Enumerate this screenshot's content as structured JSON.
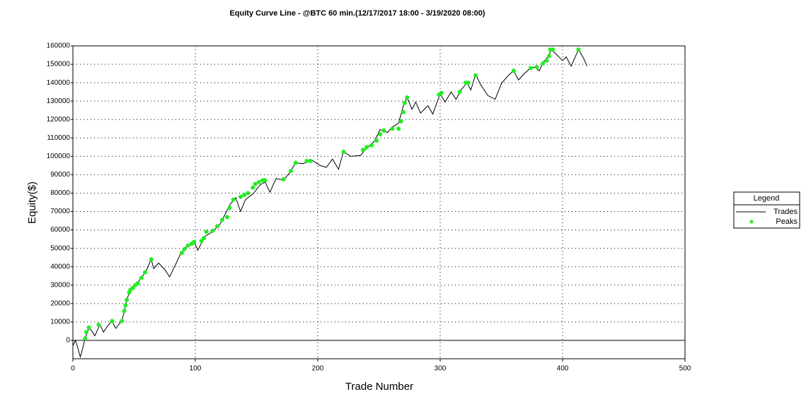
{
  "chart_data": {
    "type": "line",
    "title": "Equity Curve Line - @BTC 60 min.(12/17/2017 18:00 - 3/19/2020 08:00)",
    "xlabel": "Trade Number",
    "ylabel": "Equity($)",
    "legend_title": "Legend",
    "legend": "right",
    "xlim": [
      0,
      500
    ],
    "ylim": [
      -10000,
      160000
    ],
    "xticks": [
      0,
      100,
      200,
      300,
      400,
      500
    ],
    "yticks": [
      0,
      10000,
      20000,
      30000,
      40000,
      50000,
      60000,
      70000,
      80000,
      90000,
      100000,
      110000,
      120000,
      130000,
      140000,
      150000,
      160000
    ],
    "grid": true,
    "series": [
      {
        "name": "Trades",
        "type": "line",
        "color": "#000000",
        "x": [
          0,
          2,
          4,
          6,
          7,
          10,
          12,
          13,
          16,
          18,
          22,
          25,
          28,
          32,
          35,
          38,
          40,
          42,
          44,
          47,
          51,
          56,
          60,
          64,
          66,
          70,
          75,
          79,
          83,
          88,
          92,
          99,
          102,
          108,
          114,
          120,
          124,
          128,
          133,
          137,
          141,
          147,
          153,
          157,
          161,
          166,
          172,
          177,
          182,
          188,
          195,
          202,
          207,
          212,
          217,
          221,
          227,
          235,
          240,
          246,
          251,
          257,
          261,
          266,
          270,
          273,
          277,
          280,
          284,
          290,
          294,
          300,
          304,
          309,
          313,
          317,
          322,
          325,
          329,
          333,
          339,
          345,
          350,
          355,
          360,
          364,
          368,
          373,
          377,
          381,
          384,
          388,
          391,
          394,
          400,
          403,
          407,
          413,
          417,
          420
        ],
        "values": [
          -3000,
          0,
          -4000,
          -9000,
          -7000,
          1000,
          4500,
          7000,
          4500,
          2500,
          8500,
          4500,
          7500,
          10500,
          6500,
          9000,
          10500,
          16000,
          22000,
          27500,
          30000,
          34000,
          38000,
          44000,
          39000,
          42000,
          38500,
          34500,
          40000,
          47000,
          50500,
          53500,
          49000,
          56500,
          59000,
          63000,
          68000,
          73500,
          77500,
          70000,
          76500,
          79500,
          84500,
          86000,
          80500,
          88000,
          87000,
          91000,
          96500,
          96000,
          98000,
          95000,
          94000,
          98500,
          93000,
          102500,
          100000,
          100500,
          104500,
          108000,
          114500,
          113000,
          116000,
          118000,
          127500,
          132000,
          125500,
          129500,
          123500,
          127500,
          123000,
          134000,
          129500,
          135000,
          131000,
          136000,
          140000,
          136000,
          144500,
          139000,
          133000,
          131000,
          139500,
          143500,
          146500,
          141500,
          144500,
          147500,
          148500,
          146500,
          151000,
          154000,
          158000,
          156000,
          152000,
          154000,
          149000,
          158000,
          153500,
          149000
        ]
      },
      {
        "name": "Peaks",
        "type": "scatter",
        "color": "#22ee22",
        "x": [
          10,
          11,
          13,
          21,
          32,
          40,
          42,
          43,
          44,
          46,
          47,
          49,
          51,
          53,
          56,
          59,
          64,
          89,
          91,
          94,
          97,
          99,
          105,
          107,
          109,
          114,
          118,
          122,
          126,
          128,
          131,
          137,
          140,
          143,
          147,
          149,
          152,
          155,
          157,
          172,
          178,
          182,
          191,
          194,
          221,
          237,
          240,
          244,
          248,
          251,
          254,
          261,
          266,
          268,
          270,
          271,
          273,
          299,
          301,
          316,
          321,
          323,
          329,
          360,
          374,
          379,
          384,
          387,
          389,
          390,
          392,
          413
        ],
        "values": [
          1000,
          4500,
          7000,
          8500,
          10500,
          10500,
          16000,
          19000,
          22000,
          26000,
          27500,
          28500,
          30000,
          31000,
          34000,
          37000,
          44000,
          47500,
          49500,
          51500,
          52500,
          53500,
          54000,
          55500,
          59000,
          59500,
          62000,
          65500,
          67000,
          72000,
          76500,
          78000,
          79000,
          80000,
          83000,
          85000,
          86000,
          87000,
          87000,
          87500,
          92000,
          96500,
          97500,
          97500,
          102500,
          103500,
          105000,
          106000,
          108500,
          112000,
          114000,
          115000,
          115000,
          119000,
          124000,
          129000,
          132000,
          133500,
          134500,
          135000,
          140000,
          140000,
          144000,
          146500,
          148000,
          148500,
          150500,
          152000,
          154500,
          158000,
          158000,
          158000
        ]
      }
    ]
  }
}
